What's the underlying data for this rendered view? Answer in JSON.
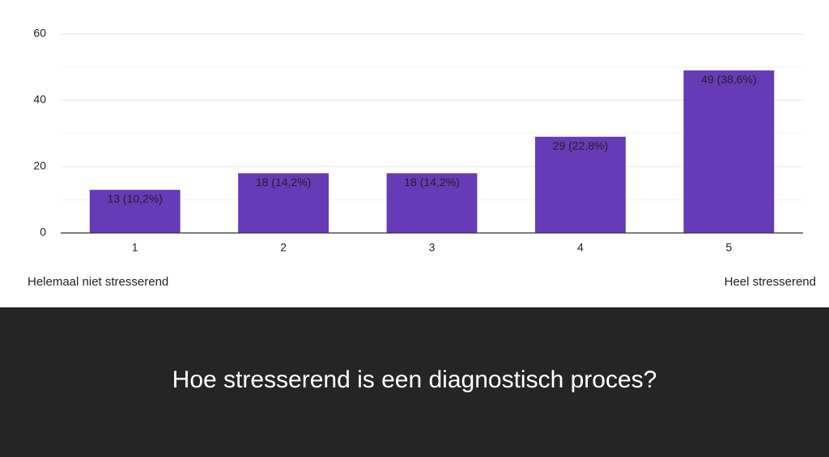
{
  "chart_data": {
    "type": "bar",
    "title": "Hoe stresserend is een diagnostisch proces?",
    "categories": [
      "1",
      "2",
      "3",
      "4",
      "5"
    ],
    "values": [
      13,
      18,
      18,
      29,
      49
    ],
    "value_labels": [
      "13 (10,2%)",
      "18 (14,2%)",
      "18 (14,2%)",
      "29 (22,8%)",
      "49 (38,6%)"
    ],
    "color": "#673ab7",
    "ylim": [
      0,
      60
    ],
    "yticks": [
      0,
      20,
      40,
      60
    ],
    "minor_yticks": [
      10,
      30,
      50
    ],
    "grid": true,
    "annotations": [
      "Helemaal niet stresserend",
      "Heel stresserend"
    ]
  }
}
